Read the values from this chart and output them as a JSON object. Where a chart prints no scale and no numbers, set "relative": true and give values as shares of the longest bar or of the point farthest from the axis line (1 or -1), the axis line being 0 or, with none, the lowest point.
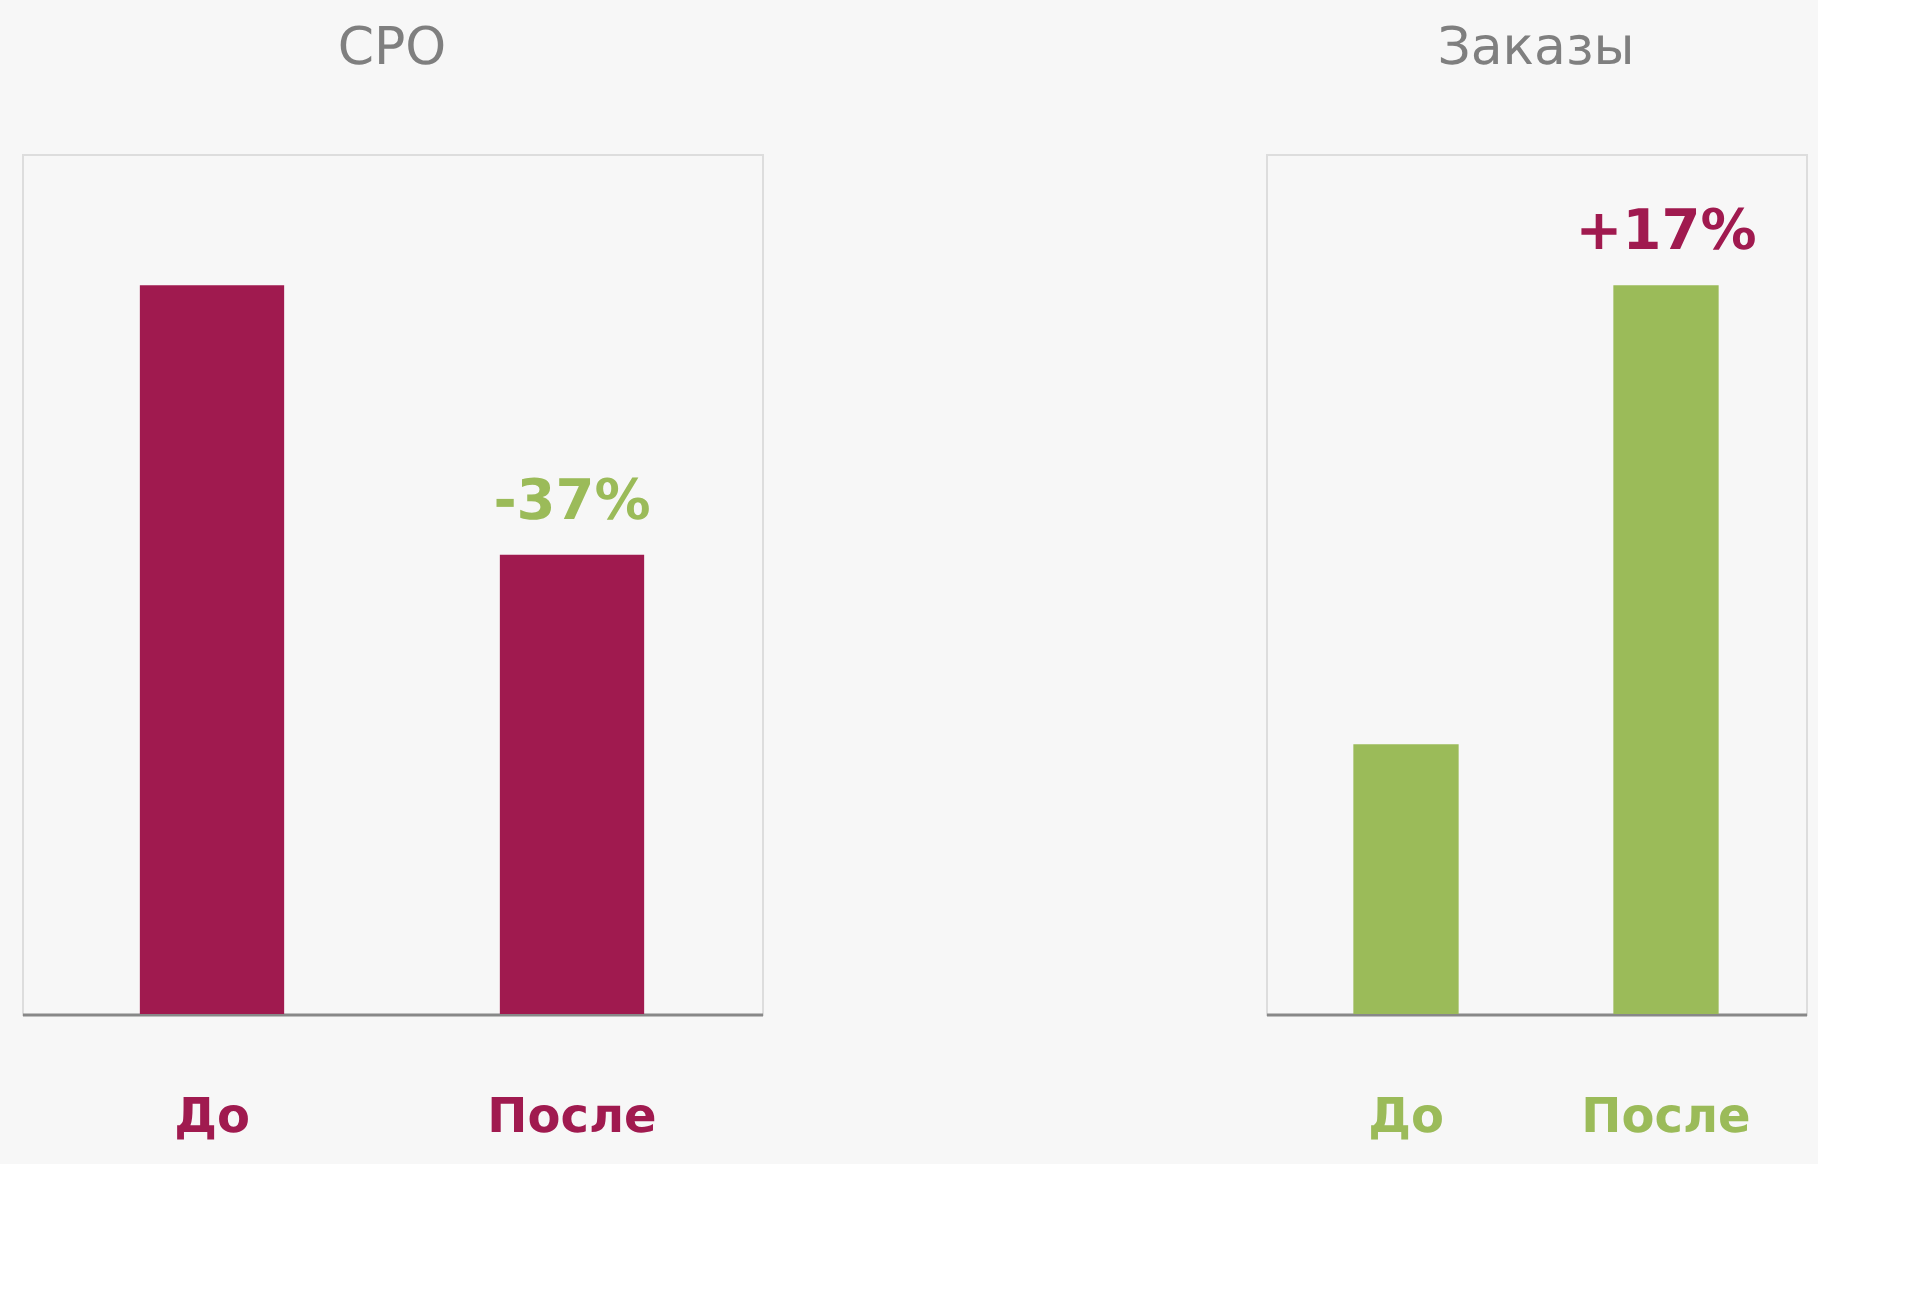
{
  "chart_data": [
    {
      "type": "bar",
      "title": "CPO",
      "categories": [
        "До",
        "После"
      ],
      "relative": true,
      "values": [
        1,
        0.63
      ],
      "color": "#a01a4f",
      "annotations": [
        {
          "text": "-37%",
          "x": "После",
          "y": 0.63
        }
      ]
    },
    {
      "type": "bar",
      "title": "Заказы",
      "categories": [
        "До",
        "После"
      ],
      "relative": true,
      "values": [
        0.37,
        1
      ],
      "color": "#9bbb59",
      "annotations": [
        {
          "text": "+17%",
          "x": "После",
          "y": 1
        }
      ]
    }
  ]
}
